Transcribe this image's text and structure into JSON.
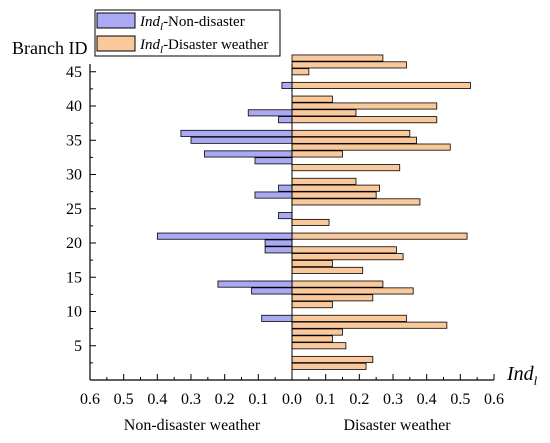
{
  "chart_data": {
    "type": "bar",
    "orientation": "horizontal",
    "y_axis_label": "Branch ID",
    "x_axis_label": {
      "main": "Ind",
      "sub": "l"
    },
    "x_ticks": [
      "0.6",
      "0.5",
      "0.4",
      "0.3",
      "0.2",
      "0.1",
      "0.0",
      "0.1",
      "0.2",
      "0.3",
      "0.4",
      "0.5",
      "0.6"
    ],
    "y_ticks": [
      5,
      10,
      15,
      20,
      25,
      30,
      35,
      40,
      45
    ],
    "xlim": [
      -0.6,
      0.6
    ],
    "ylim": [
      0,
      47
    ],
    "left_caption": "Non-disaster weather",
    "right_caption": "Disaster weather",
    "legend_position": "top-left",
    "series": [
      {
        "name_main": "Ind",
        "name_sub": "l",
        "name_suffix": "-Non-disaster",
        "color": "#aaa9f4",
        "direction": "left",
        "data": [
          [
            9,
            0.09
          ],
          [
            13,
            0.12
          ],
          [
            14,
            0.22
          ],
          [
            19,
            0.08
          ],
          [
            20,
            0.08
          ],
          [
            21,
            0.4
          ],
          [
            24,
            0.04
          ],
          [
            27,
            0.11
          ],
          [
            28,
            0.04
          ],
          [
            32,
            0.11
          ],
          [
            33,
            0.26
          ],
          [
            35,
            0.3
          ],
          [
            36,
            0.33
          ],
          [
            38,
            0.04
          ],
          [
            39,
            0.13
          ],
          [
            43,
            0.03
          ]
        ]
      },
      {
        "name_main": "Ind",
        "name_sub": "l",
        "name_suffix": "-Disaster weather",
        "color": "#f9c99c",
        "direction": "right",
        "data": [
          [
            2,
            0.22
          ],
          [
            3,
            0.24
          ],
          [
            5,
            0.16
          ],
          [
            6,
            0.12
          ],
          [
            7,
            0.15
          ],
          [
            8,
            0.46
          ],
          [
            9,
            0.34
          ],
          [
            11,
            0.12
          ],
          [
            12,
            0.24
          ],
          [
            13,
            0.36
          ],
          [
            14,
            0.27
          ],
          [
            16,
            0.21
          ],
          [
            17,
            0.12
          ],
          [
            18,
            0.33
          ],
          [
            19,
            0.31
          ],
          [
            21,
            0.52
          ],
          [
            23,
            0.11
          ],
          [
            26,
            0.38
          ],
          [
            27,
            0.25
          ],
          [
            28,
            0.26
          ],
          [
            29,
            0.19
          ],
          [
            31,
            0.32
          ],
          [
            33,
            0.15
          ],
          [
            34,
            0.47
          ],
          [
            35,
            0.37
          ],
          [
            36,
            0.35
          ],
          [
            38,
            0.43
          ],
          [
            39,
            0.19
          ],
          [
            40,
            0.43
          ],
          [
            41,
            0.12
          ],
          [
            43,
            0.53
          ],
          [
            45,
            0.05
          ],
          [
            46,
            0.34
          ],
          [
            47,
            0.27
          ]
        ]
      }
    ]
  }
}
